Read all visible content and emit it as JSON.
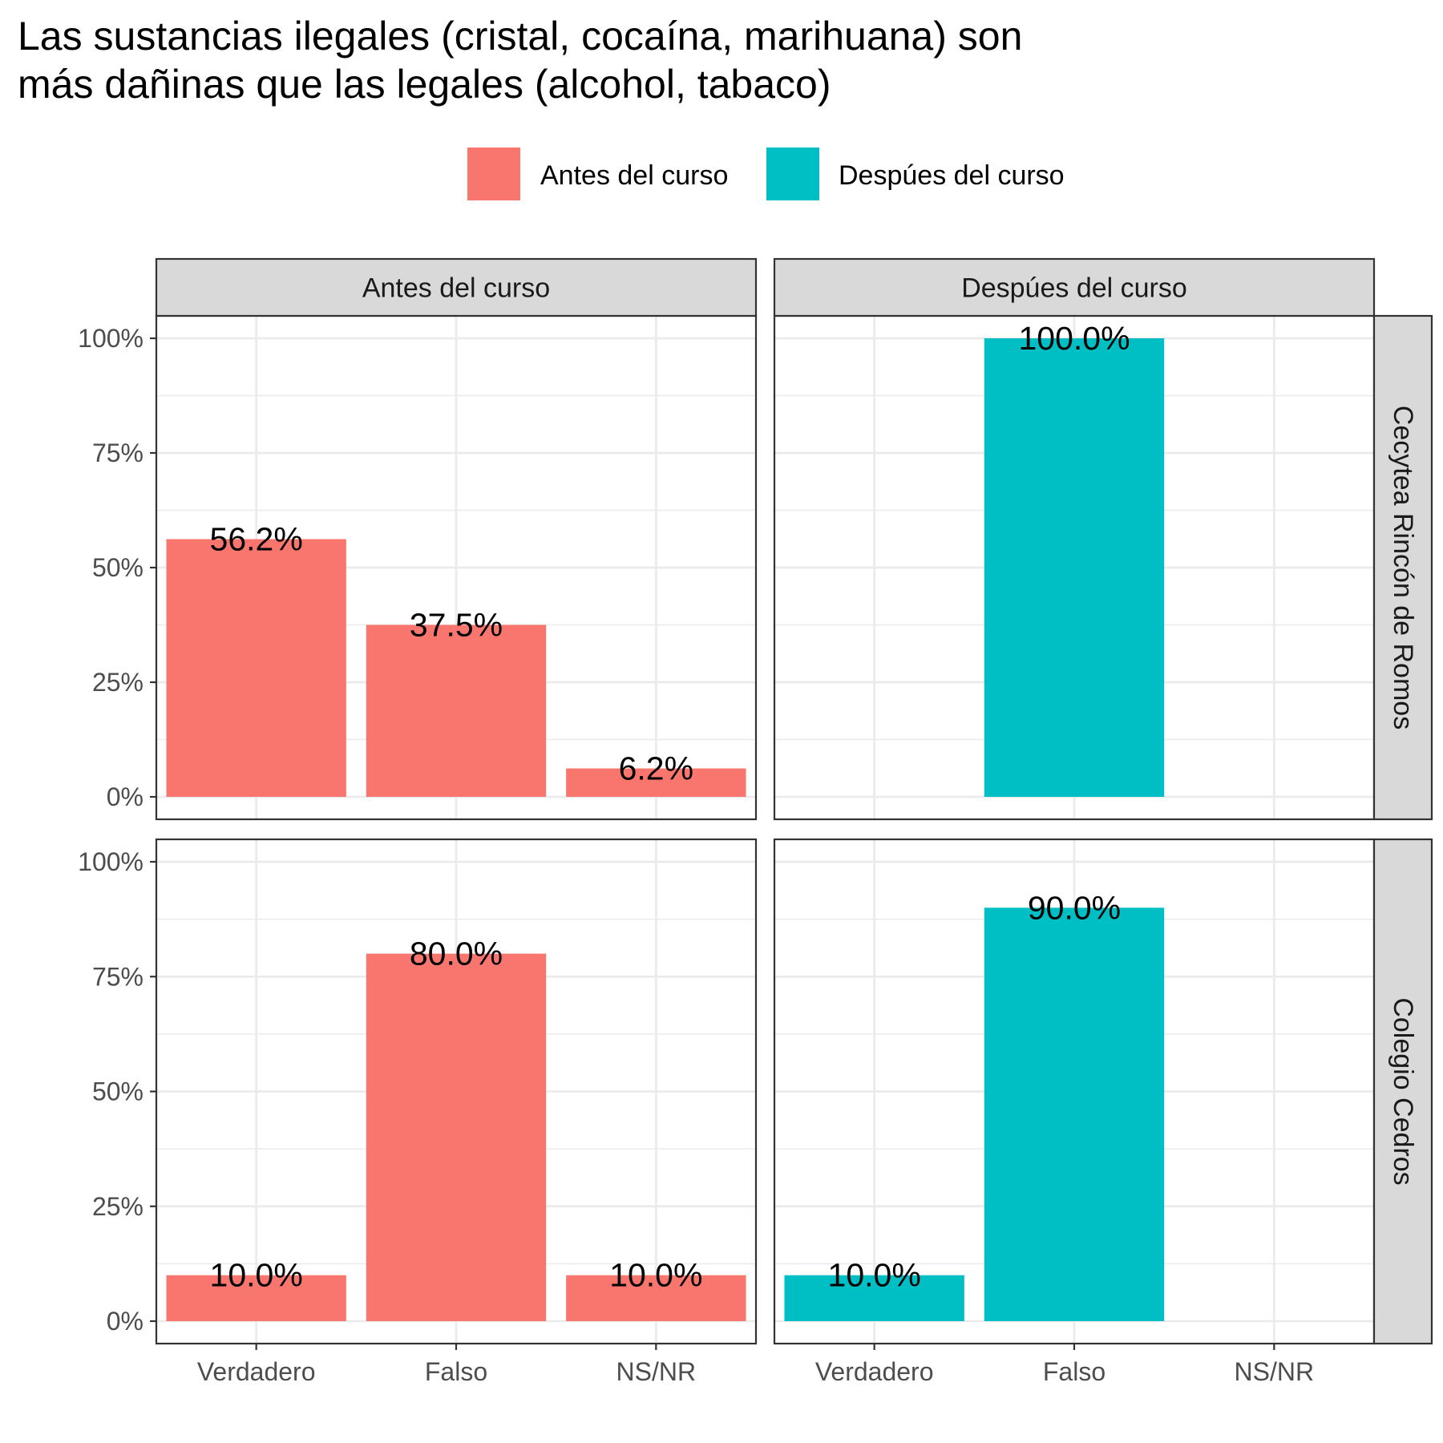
{
  "chart_data": {
    "type": "bar",
    "title_lines": [
      "Las sustancias ilegales (cristal, cocaína, marihuana) son",
      "más dañinas que las legales (alcohol, tabaco)"
    ],
    "legend": [
      {
        "label": "Antes del curso",
        "color": "#F8766D"
      },
      {
        "label": "Despúes del curso",
        "color": "#00BFC4"
      }
    ],
    "legend_position": "top",
    "categories": [
      "Verdadero",
      "Falso",
      "NS/NR"
    ],
    "col_facets": [
      "Antes del curso",
      "Despúes del curso"
    ],
    "row_facets": [
      "Cecytea Rincón de Romos",
      "Colegio Cedros"
    ],
    "ylim": [
      0,
      100
    ],
    "y_ticks": [
      0,
      25,
      50,
      75,
      100
    ],
    "y_tick_labels": [
      "0%",
      "25%",
      "50%",
      "75%",
      "100%"
    ],
    "grid": true,
    "panels": [
      {
        "row": 0,
        "col": 0,
        "color": "#F8766D",
        "values": [
          56.2,
          37.5,
          6.2
        ],
        "labels": [
          "56.2%",
          "37.5%",
          "6.2%"
        ]
      },
      {
        "row": 0,
        "col": 1,
        "color": "#00BFC4",
        "values": [
          null,
          100.0,
          null
        ],
        "labels": [
          null,
          "100.0%",
          null
        ]
      },
      {
        "row": 1,
        "col": 0,
        "color": "#F8766D",
        "values": [
          10.0,
          80.0,
          10.0
        ],
        "labels": [
          "10.0%",
          "80.0%",
          "10.0%"
        ]
      },
      {
        "row": 1,
        "col": 1,
        "color": "#00BFC4",
        "values": [
          10.0,
          90.0,
          null
        ],
        "labels": [
          "10.0%",
          "90.0%",
          null
        ]
      }
    ]
  }
}
